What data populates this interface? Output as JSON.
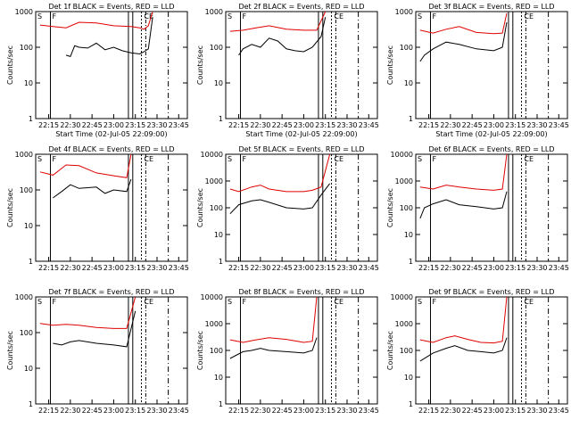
{
  "figure": {
    "xlabel": "Start Time (02-Jul-05 22:09:00)",
    "ylabel": "Counts/sec",
    "legend_black": "BLACK = Events",
    "legend_red": "RED = LLD",
    "colors": {
      "events": "#000000",
      "lld": "#e00000",
      "axes": "#000000",
      "background": "#ffffff"
    },
    "marker_labels": [
      "S",
      "F",
      "C",
      "E"
    ]
  },
  "chart_data": [
    {
      "type": "line",
      "title": "Det 1f BLACK = Events, RED = LLD",
      "xlabel": "Start Time (02-Jul-05 22:09:00)",
      "ylabel": "Counts/sec",
      "x_ticks": [
        "22:15",
        "22:30",
        "22:45",
        "23:00",
        "23:15",
        "23:30",
        "23:45"
      ],
      "y_ticks": [
        "1",
        "10",
        "100",
        "1000"
      ],
      "y_scale": "log",
      "ylim": [
        1,
        1000
      ],
      "series": [
        {
          "name": "Events",
          "color": "#000000",
          "x_min": [
            22.45,
            22.5,
            22.55,
            22.6,
            22.7,
            22.8,
            22.9,
            23.0,
            23.1,
            23.2,
            23.3,
            23.35,
            23.4,
            23.45
          ],
          "y": [
            60,
            55,
            110,
            100,
            95,
            130,
            85,
            100,
            80,
            70,
            65,
            75,
            90,
            700
          ]
        },
        {
          "name": "LLD",
          "color": "#e00000",
          "x_min": [
            22.15,
            22.3,
            22.45,
            22.6,
            22.8,
            23.0,
            23.2,
            23.3,
            23.35,
            23.4,
            23.45
          ],
          "y": [
            420,
            380,
            350,
            500,
            480,
            400,
            380,
            350,
            320,
            400,
            1000
          ]
        }
      ]
    },
    {
      "type": "line",
      "title": "Det 2f BLACK = Events, RED = LLD",
      "xlabel": "Start Time (02-Jul-05 22:09:00)",
      "ylabel": "Counts/sec",
      "x_ticks": [
        "22:15",
        "22:30",
        "22:45",
        "23:00",
        "23:15",
        "23:30",
        "23:45"
      ],
      "y_ticks": [
        "1",
        "10",
        "100",
        "1000"
      ],
      "y_scale": "log",
      "ylim": [
        1,
        1000
      ],
      "series": [
        {
          "name": "Events",
          "color": "#000000",
          "x_min": [
            22.25,
            22.3,
            22.4,
            22.5,
            22.6,
            22.7,
            22.8,
            22.9,
            23.0,
            23.1,
            23.2,
            23.25
          ],
          "y": [
            60,
            90,
            120,
            100,
            180,
            150,
            90,
            80,
            75,
            100,
            200,
            700
          ]
        },
        {
          "name": "LLD",
          "color": "#e00000",
          "x_min": [
            22.15,
            22.3,
            22.45,
            22.6,
            22.8,
            23.0,
            23.15,
            23.25
          ],
          "y": [
            280,
            300,
            350,
            400,
            320,
            300,
            300,
            1000
          ]
        }
      ]
    },
    {
      "type": "line",
      "title": "Det 3f BLACK = Events, RED = LLD",
      "xlabel": "Start Time (02-Jul-05 22:09:00)",
      "ylabel": "Counts/sec",
      "x_ticks": [
        "22:15",
        "22:30",
        "22:45",
        "23:00",
        "23:15",
        "23:30",
        "23:45"
      ],
      "y_ticks": [
        "1",
        "10",
        "100",
        "1000"
      ],
      "y_scale": "log",
      "ylim": [
        1,
        1000
      ],
      "series": [
        {
          "name": "Events",
          "color": "#000000",
          "x_min": [
            22.15,
            22.2,
            22.3,
            22.45,
            22.6,
            22.8,
            23.0,
            23.1,
            23.15
          ],
          "y": [
            40,
            60,
            90,
            140,
            120,
            90,
            80,
            100,
            500
          ]
        },
        {
          "name": "LLD",
          "color": "#e00000",
          "x_min": [
            22.15,
            22.3,
            22.45,
            22.6,
            22.8,
            23.0,
            23.1,
            23.15
          ],
          "y": [
            300,
            250,
            320,
            380,
            260,
            240,
            250,
            900
          ]
        }
      ]
    },
    {
      "type": "line",
      "title": "Det 4f BLACK = Events, RED = LLD",
      "xlabel": "",
      "ylabel": "Counts/sec",
      "x_ticks": [
        "22:15",
        "22:30",
        "22:45",
        "23:00",
        "23:15",
        "23:30",
        "23:45"
      ],
      "y_ticks": [
        "1",
        "10",
        "100",
        "1000"
      ],
      "y_scale": "log",
      "ylim": [
        1,
        1000
      ],
      "series": [
        {
          "name": "Events",
          "color": "#000000",
          "x_min": [
            22.3,
            22.4,
            22.5,
            22.6,
            22.8,
            22.9,
            23.0,
            23.15,
            23.2
          ],
          "y": [
            60,
            90,
            140,
            110,
            120,
            80,
            100,
            90,
            200
          ]
        },
        {
          "name": "LLD",
          "color": "#e00000",
          "x_min": [
            22.15,
            22.3,
            22.45,
            22.6,
            22.8,
            23.0,
            23.15,
            23.2
          ],
          "y": [
            320,
            260,
            500,
            480,
            300,
            250,
            220,
            1000
          ]
        }
      ]
    },
    {
      "type": "line",
      "title": "Det 5f BLACK = Events, RED = LLD",
      "xlabel": "",
      "ylabel": "Counts/sec",
      "x_ticks": [
        "22:15",
        "22:30",
        "22:45",
        "23:00",
        "23:15",
        "23:30",
        "23:45"
      ],
      "y_ticks": [
        "1",
        "10",
        "100",
        "1000",
        "10000"
      ],
      "y_scale": "log",
      "ylim": [
        1,
        10000
      ],
      "series": [
        {
          "name": "Events",
          "color": "#000000",
          "x_min": [
            22.15,
            22.25,
            22.4,
            22.5,
            22.6,
            22.8,
            23.0,
            23.1,
            23.2,
            23.3
          ],
          "y": [
            60,
            130,
            180,
            200,
            160,
            100,
            90,
            100,
            300,
            800
          ]
        },
        {
          "name": "LLD",
          "color": "#e00000",
          "x_min": [
            22.15,
            22.25,
            22.4,
            22.5,
            22.6,
            22.8,
            23.0,
            23.1,
            23.2,
            23.3
          ],
          "y": [
            500,
            400,
            600,
            700,
            500,
            400,
            400,
            450,
            600,
            10000
          ]
        }
      ]
    },
    {
      "type": "line",
      "title": "Det 6f BLACK = Events, RED = LLD",
      "xlabel": "",
      "ylabel": "Counts/sec",
      "x_ticks": [
        "22:15",
        "22:30",
        "22:45",
        "23:00",
        "23:15",
        "23:30",
        "23:45"
      ],
      "y_ticks": [
        "1",
        "10",
        "100",
        "1000",
        "10000"
      ],
      "y_scale": "log",
      "ylim": [
        1,
        10000
      ],
      "series": [
        {
          "name": "Events",
          "color": "#000000",
          "x_min": [
            22.15,
            22.2,
            22.3,
            22.45,
            22.6,
            22.8,
            23.0,
            23.1,
            23.15
          ],
          "y": [
            40,
            100,
            140,
            200,
            130,
            110,
            90,
            100,
            400
          ]
        },
        {
          "name": "LLD",
          "color": "#e00000",
          "x_min": [
            22.15,
            22.3,
            22.45,
            22.6,
            22.8,
            23.0,
            23.1,
            23.15
          ],
          "y": [
            600,
            500,
            700,
            600,
            500,
            450,
            500,
            10000
          ]
        }
      ]
    },
    {
      "type": "line",
      "title": "Det 7f BLACK = Events, RED = LLD",
      "xlabel": "",
      "ylabel": "Counts/sec",
      "x_ticks": [
        "22:15",
        "22:30",
        "22:45",
        "23:00",
        "23:15",
        "23:30",
        "23:45"
      ],
      "y_ticks": [
        "1",
        "10",
        "100",
        "1000"
      ],
      "y_scale": "log",
      "ylim": [
        1,
        1000
      ],
      "series": [
        {
          "name": "Events",
          "color": "#000000",
          "x_min": [
            22.3,
            22.4,
            22.5,
            22.6,
            22.8,
            23.0,
            23.15,
            23.25
          ],
          "y": [
            50,
            45,
            55,
            60,
            50,
            45,
            40,
            400
          ]
        },
        {
          "name": "LLD",
          "color": "#e00000",
          "x_min": [
            22.15,
            22.3,
            22.45,
            22.6,
            22.8,
            23.0,
            23.15,
            23.25
          ],
          "y": [
            180,
            160,
            170,
            160,
            140,
            130,
            130,
            1000
          ]
        }
      ]
    },
    {
      "type": "line",
      "title": "Det 8f BLACK = Events, RED = LLD",
      "xlabel": "",
      "ylabel": "Counts/sec",
      "x_ticks": [
        "22:15",
        "22:30",
        "22:45",
        "23:00",
        "23:15",
        "23:30",
        "23:45"
      ],
      "y_ticks": [
        "1",
        "10",
        "100",
        "1000",
        "10000"
      ],
      "y_scale": "log",
      "ylim": [
        1,
        10000
      ],
      "series": [
        {
          "name": "Events",
          "color": "#000000",
          "x_min": [
            22.15,
            22.3,
            22.4,
            22.5,
            22.6,
            22.8,
            23.0,
            23.1,
            23.15
          ],
          "y": [
            50,
            90,
            100,
            120,
            100,
            90,
            80,
            100,
            300
          ]
        },
        {
          "name": "LLD",
          "color": "#e00000",
          "x_min": [
            22.15,
            22.3,
            22.45,
            22.6,
            22.8,
            23.0,
            23.1,
            23.15
          ],
          "y": [
            250,
            200,
            250,
            300,
            260,
            200,
            220,
            10000
          ]
        }
      ]
    },
    {
      "type": "line",
      "title": "Det 9f BLACK = Events, RED = LLD",
      "xlabel": "",
      "ylabel": "Counts/sec",
      "x_ticks": [
        "22:15",
        "22:30",
        "22:45",
        "23:00",
        "23:15",
        "23:30",
        "23:45"
      ],
      "y_ticks": [
        "1",
        "10",
        "100",
        "1000",
        "10000"
      ],
      "y_scale": "log",
      "ylim": [
        1,
        10000
      ],
      "series": [
        {
          "name": "Events",
          "color": "#000000",
          "x_min": [
            22.15,
            22.3,
            22.45,
            22.55,
            22.7,
            22.85,
            23.0,
            23.1,
            23.15
          ],
          "y": [
            40,
            80,
            120,
            150,
            100,
            90,
            80,
            100,
            300
          ]
        },
        {
          "name": "LLD",
          "color": "#e00000",
          "x_min": [
            22.15,
            22.3,
            22.45,
            22.55,
            22.7,
            22.85,
            23.0,
            23.1,
            23.15
          ],
          "y": [
            250,
            200,
            300,
            350,
            260,
            200,
            190,
            220,
            10000
          ]
        }
      ]
    }
  ]
}
